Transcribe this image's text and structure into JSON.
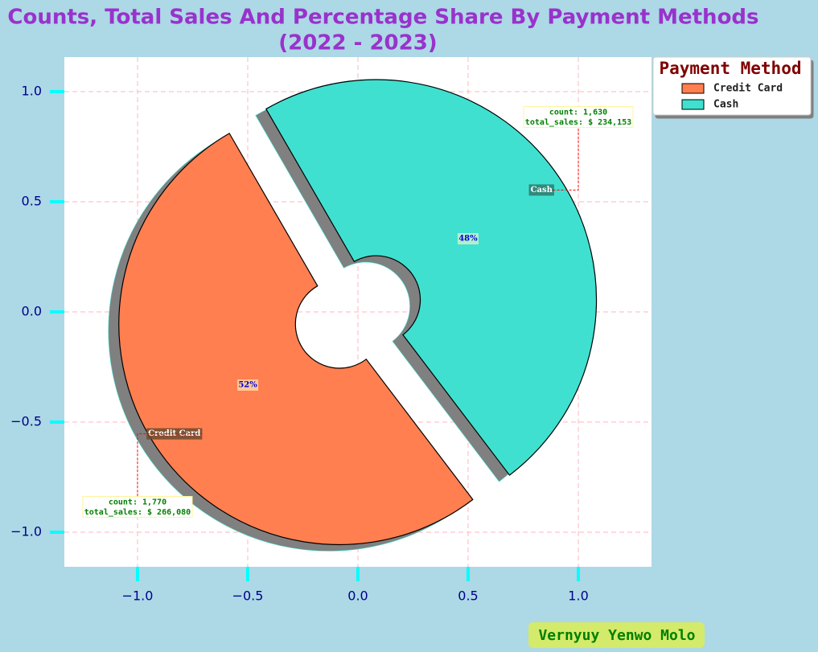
{
  "chart_data": {
    "type": "pie",
    "title": [
      "The Counts, Total Sales And Percentage Share By Payment Methods",
      "(2022 - 2023)"
    ],
    "categories": [
      "Credit Card",
      "Cash"
    ],
    "values": [
      52,
      48
    ],
    "value_labels": [
      "52%",
      "48%"
    ],
    "colors": [
      "#ff7f50",
      "#40e0d0"
    ],
    "annotations": [
      [
        "count: 1,770",
        "total_sales: $ 266,080"
      ],
      [
        "count: 1,630",
        "total_sales: $ 234,153"
      ]
    ],
    "legend_title": "Payment Method",
    "legend": "upper right",
    "grid": true,
    "xlim": [
      -1.332,
      1.332
    ],
    "ylim": [
      -1.157,
      1.157
    ],
    "xticks": [
      {
        "value": -1,
        "label": "−1.0"
      },
      {
        "value": -0.5,
        "label": "−0.5"
      },
      {
        "value": 0,
        "label": "0.0"
      },
      0.5,
      {
        "value": 1,
        "label": "1.0"
      }
    ],
    "yticks": [
      {
        "value": -1,
        "label": "−1.0"
      },
      {
        "value": -0.5,
        "label": "−0.5"
      },
      {
        "value": 0,
        "label": "0.0"
      },
      0.5,
      {
        "value": 1,
        "label": "1.0"
      }
    ],
    "credit": "Vernyuy Yenwo Molo"
  }
}
